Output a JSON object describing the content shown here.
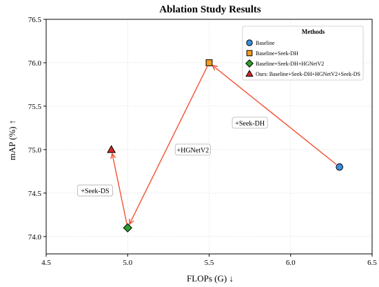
{
  "chart_data": {
    "type": "scatter",
    "title": "Ablation Study Results",
    "xlabel": "FLOPs (G) ↓",
    "ylabel": "mAP (%) ↑",
    "xlim": [
      4.5,
      6.5
    ],
    "ylim": [
      73.8,
      76.5
    ],
    "xticks": [
      4.5,
      5.0,
      5.5,
      6.0,
      6.5
    ],
    "yticks": [
      74.0,
      74.5,
      75.0,
      75.5,
      76.0,
      76.5
    ],
    "xtick_labels": [
      "4.5",
      "5.0",
      "5.5",
      "6.0",
      "6.5"
    ],
    "ytick_labels": [
      "74.0",
      "74.5",
      "75.0",
      "75.5",
      "76.0",
      "76.5"
    ],
    "grid": true,
    "legend_position": "top-right",
    "legend_title": "Methods",
    "series": [
      {
        "name": "Baseline",
        "marker": "circle",
        "color": "#3b8ede",
        "x": [
          6.3
        ],
        "y": [
          74.8
        ]
      },
      {
        "name": "Baseline+Seek-DH",
        "marker": "square",
        "color": "#f39c1e",
        "x": [
          5.5
        ],
        "y": [
          76.0
        ]
      },
      {
        "name": "Baseline+Seek-DH+HGNetV2",
        "marker": "diamond",
        "color": "#2ca02c",
        "x": [
          5.0
        ],
        "y": [
          74.1
        ]
      },
      {
        "name": "Ours: Baseline+Seek-DH+HGNetV2+Seek-DS",
        "marker": "triangle",
        "color": "#d62728",
        "x": [
          4.9
        ],
        "y": [
          75.0
        ]
      }
    ],
    "arrows": [
      {
        "from": [
          6.3,
          74.8
        ],
        "to": [
          5.5,
          76.0
        ]
      },
      {
        "from": [
          5.5,
          76.0
        ],
        "to": [
          5.0,
          74.1
        ]
      },
      {
        "from": [
          5.0,
          74.1
        ],
        "to": [
          4.9,
          75.0
        ]
      }
    ],
    "annotations": [
      {
        "text": "+Seek-DH",
        "x": 5.75,
        "y": 75.31
      },
      {
        "text": "+HGNetV2",
        "x": 5.4,
        "y": 75.0
      },
      {
        "text": "+Seek-DS",
        "x": 4.8,
        "y": 74.53
      }
    ],
    "arrow_color": "#f4593d"
  }
}
